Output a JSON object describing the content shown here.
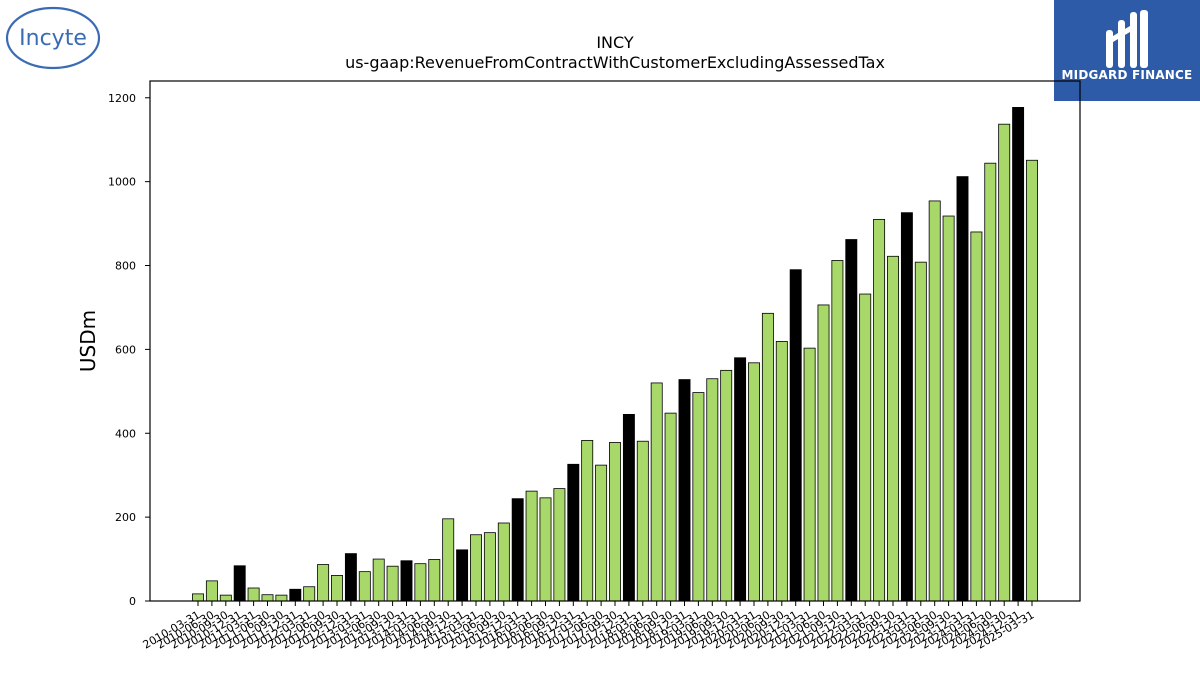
{
  "logos": {
    "incyte": "Incyte",
    "midgard": "MIDGARD FINANCE"
  },
  "chart_data": {
    "type": "bar",
    "title": "INCY",
    "subtitle": "us-gaap:RevenueFromContractWithCustomerExcludingAssessedTax",
    "xlabel": "",
    "ylabel": "USDm",
    "ylim": [
      0,
      1240
    ],
    "yticks": [
      0,
      200,
      400,
      600,
      800,
      1000,
      1200
    ],
    "grid": false,
    "colors": {
      "quarter": "#a8d86a",
      "year_end": "#000000",
      "edge": "#000000"
    },
    "categories": [
      "2010-03-31",
      "2010-06-30",
      "2010-09-30",
      "2010-12-31",
      "2011-03-31",
      "2011-06-30",
      "2011-09-30",
      "2011-12-31",
      "2012-03-31",
      "2012-06-30",
      "2012-09-30",
      "2012-12-31",
      "2013-03-31",
      "2013-06-30",
      "2013-09-30",
      "2013-12-31",
      "2014-03-31",
      "2014-06-30",
      "2014-09-30",
      "2014-12-31",
      "2015-03-31",
      "2015-06-30",
      "2015-09-30",
      "2015-12-31",
      "2016-03-31",
      "2016-06-30",
      "2016-09-30",
      "2016-12-31",
      "2017-03-31",
      "2017-06-30",
      "2017-09-30",
      "2017-12-31",
      "2018-03-31",
      "2018-06-30",
      "2018-09-30",
      "2018-12-31",
      "2019-03-31",
      "2019-06-30",
      "2019-09-30",
      "2019-12-31",
      "2020-03-31",
      "2020-06-30",
      "2020-09-30",
      "2020-12-31",
      "2021-03-31",
      "2021-06-30",
      "2021-09-30",
      "2021-12-31",
      "2022-03-31",
      "2022-06-30",
      "2022-09-30",
      "2022-12-31",
      "2023-03-31",
      "2023-06-30",
      "2023-09-30",
      "2023-12-31",
      "2024-03-31",
      "2024-06-30",
      "2024-09-30",
      "2024-12-31",
      "2025-03-31"
    ],
    "values": [
      17,
      48,
      14,
      84,
      31,
      15,
      14,
      28,
      34,
      87,
      61,
      113,
      70,
      100,
      83,
      96,
      89,
      99,
      196,
      122,
      158,
      163,
      186,
      244,
      262,
      246,
      268,
      326,
      383,
      324,
      378,
      445,
      381,
      520,
      448,
      528,
      497,
      530,
      550,
      580,
      568,
      686,
      619,
      790,
      603,
      706,
      812,
      862,
      732,
      910,
      822,
      926,
      808,
      954,
      918,
      1012,
      880,
      1044,
      1137,
      1177,
      1051
    ],
    "year_end_index_mod": 3
  }
}
